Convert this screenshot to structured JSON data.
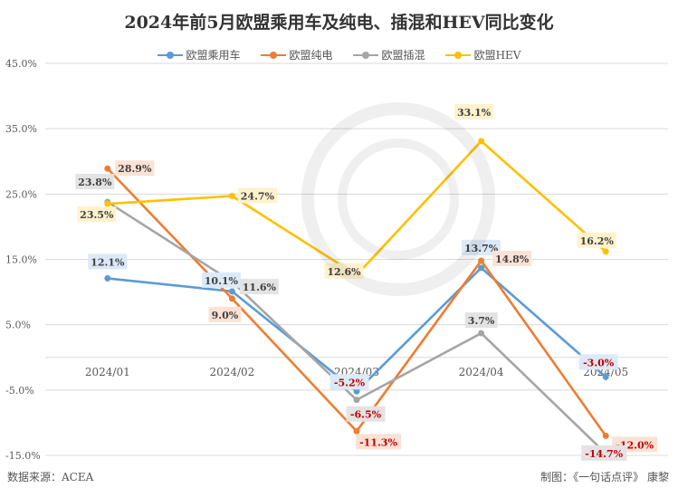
{
  "chart_data": {
    "type": "line",
    "title": "2024年前5月欧盟乘用车及纯电、插混和HEV同比变化",
    "categories": [
      "2024/01",
      "2024/02",
      "2024/03",
      "2024/04",
      "2024/05"
    ],
    "ylim": [
      -15,
      45
    ],
    "yticks": [
      45,
      35,
      25,
      15,
      5,
      -5,
      -15
    ],
    "ytick_labels": [
      "45.0%",
      "35.0%",
      "25.0%",
      "15.0%",
      "5.0%",
      "-5.0%",
      "-15.0%"
    ],
    "grid": true,
    "legend_position": "top",
    "series": [
      {
        "name": "欧盟乘用车",
        "color": "#5b9bd5",
        "label_bg": "#dce9f7",
        "values": [
          12.1,
          10.1,
          -5.2,
          13.7,
          -3.0
        ],
        "labels": [
          "12.1%",
          "10.1%",
          "-5.2%",
          "13.7%",
          "-3.0%"
        ]
      },
      {
        "name": "欧盟纯电",
        "color": "#ed7d31",
        "label_bg": "#fbe2d5",
        "values": [
          28.9,
          9.0,
          -11.3,
          14.8,
          -12.0
        ],
        "labels": [
          "28.9%",
          "9.0%",
          "-11.3%",
          "14.8%",
          "-12.0%"
        ]
      },
      {
        "name": "欧盟插混",
        "color": "#a5a5a5",
        "label_bg": "#e3e3e3",
        "values": [
          23.8,
          11.6,
          -6.5,
          3.7,
          -14.7
        ],
        "labels": [
          "23.8%",
          "11.6%",
          "-6.5%",
          "3.7%",
          "-14.7%"
        ]
      },
      {
        "name": "欧盟HEV",
        "color": "#ffc000",
        "label_bg": "#fff2cc",
        "values": [
          23.5,
          24.7,
          12.6,
          33.1,
          16.2
        ],
        "labels": [
          "23.5%",
          "24.7%",
          "12.6%",
          "33.1%",
          "16.2%"
        ]
      }
    ]
  },
  "footer": {
    "source": "数据来源：ACEA",
    "credit": "制图：《一句话点评》 康黎"
  },
  "watermark": {
    "text": "一句话点评"
  }
}
